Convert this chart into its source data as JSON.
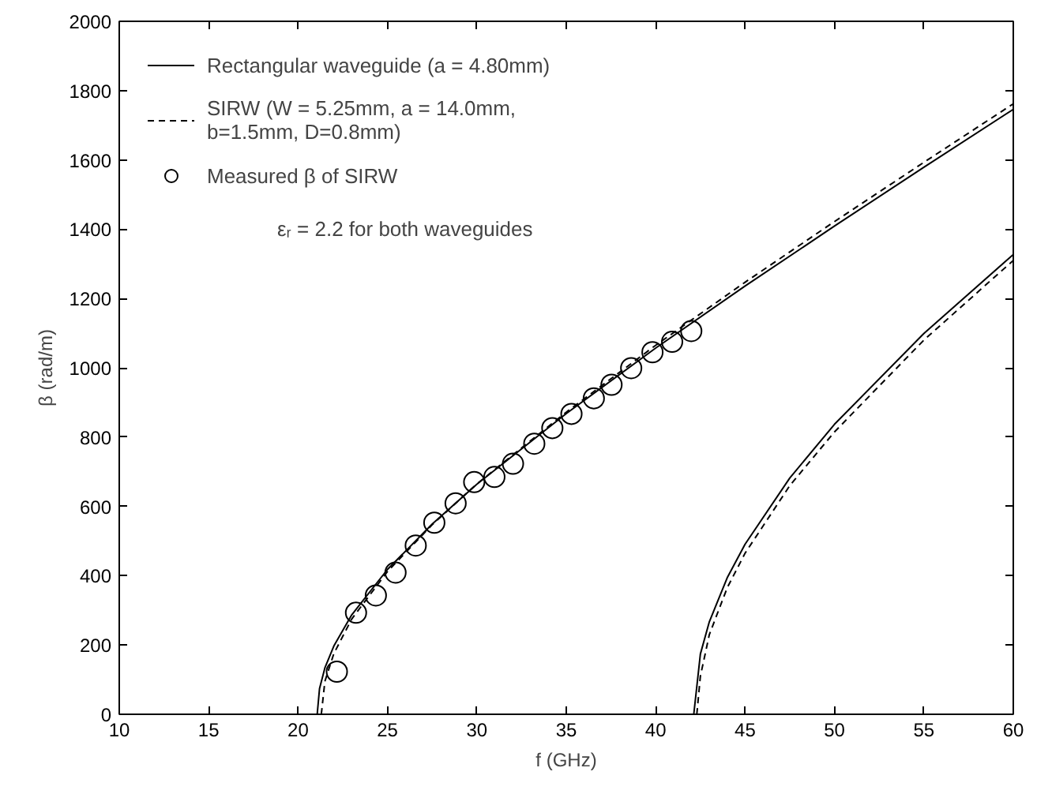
{
  "chart_data": {
    "type": "line",
    "xlabel": "f (GHz)",
    "ylabel": "β (rad/m)",
    "xlim": [
      10,
      60
    ],
    "ylim": [
      0,
      2000
    ],
    "xticks": [
      10,
      15,
      20,
      25,
      30,
      35,
      40,
      45,
      50,
      55,
      60
    ],
    "yticks": [
      0,
      200,
      400,
      600,
      800,
      1000,
      1200,
      1400,
      1600,
      1800,
      2000
    ],
    "grid": false,
    "legend": "top left",
    "annotations": [
      "εᵣ = 2.2 for both waveguides"
    ],
    "series": [
      {
        "name": "Rectangular waveguide (a = 4.80mm)",
        "color": "#000000",
        "line_style": "solid",
        "marker": "none",
        "x": [
          21.07,
          21.2,
          21.5,
          22,
          23,
          25,
          27.5,
          30,
          35,
          40,
          45,
          50,
          55,
          60
        ],
        "values": [
          0,
          74,
          134,
          197,
          287,
          418,
          549,
          664,
          868,
          1057,
          1236,
          1409,
          1579,
          1746
        ]
      },
      {
        "color": "#000000",
        "line_style": "solid",
        "marker": "none",
        "x": [
          42.13,
          42.5,
          43,
          44,
          45,
          47.5,
          50,
          55,
          60
        ],
        "values": [
          0,
          174,
          267,
          394,
          491,
          682,
          837,
          1099,
          1327
        ]
      },
      {
        "name": "SIRW (W = 5.25mm, a = 14.0mm,\nb=1.5mm, D=0.8mm)",
        "color": "#000000",
        "line_style": "dashed",
        "marker": "none",
        "x": [
          21.3,
          21.5,
          22,
          23,
          25,
          27.5,
          30,
          35,
          40,
          45,
          50,
          55,
          60
        ],
        "values": [
          0,
          95,
          175,
          275,
          412,
          547,
          665,
          872,
          1065,
          1247,
          1422,
          1593,
          1762
        ]
      },
      {
        "color": "#000000",
        "line_style": "dashed",
        "marker": "none",
        "x": [
          42.3,
          42.5,
          43,
          44,
          45,
          47.5,
          50,
          55,
          60
        ],
        "values": [
          0,
          110,
          230,
          365,
          465,
          660,
          815,
          1080,
          1310
        ]
      },
      {
        "name": "Measured β of SIRW",
        "type": "scatter",
        "color": "#000000",
        "marker": "circle",
        "x": [
          22.17,
          23.24,
          24.35,
          25.45,
          26.58,
          27.62,
          28.81,
          29.85,
          30.98,
          32.02,
          33.21,
          34.22,
          35.29,
          36.54,
          37.53,
          38.63,
          39.82,
          40.92,
          41.99
        ],
        "values": [
          123,
          293,
          343,
          409,
          487,
          553,
          609,
          670,
          685,
          723,
          781,
          826,
          867,
          912,
          951,
          999,
          1045,
          1075,
          1106
        ]
      }
    ]
  }
}
